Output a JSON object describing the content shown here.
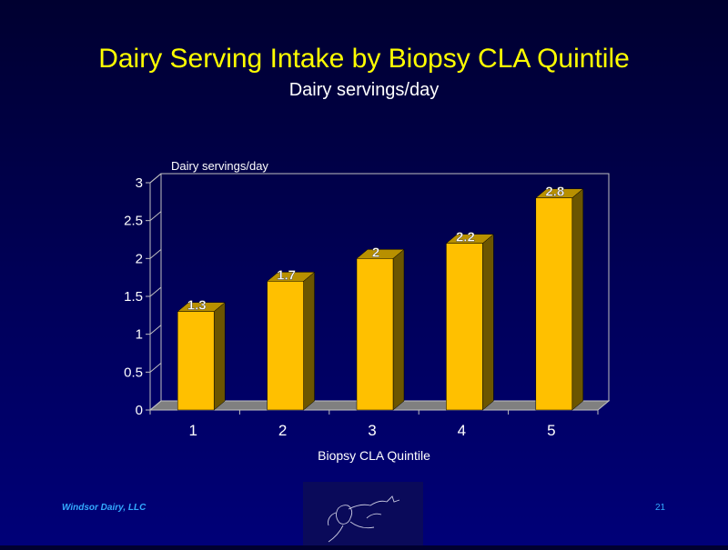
{
  "slide": {
    "title": "Dairy Serving Intake by Biopsy CLA Quintile",
    "subtitle": "Dairy servings/day",
    "footer_company": "Windsor Dairy, LLC",
    "page_number": "21"
  },
  "colors": {
    "bar_front": "#ffc000",
    "bar_side": "#6b5500",
    "bar_top": "#b89000",
    "axis": "#c0c0c0",
    "floor": "#808080",
    "title": "#ffff00",
    "text": "#ffffff",
    "footer": "#33aaff"
  },
  "chart_data": {
    "type": "bar",
    "title": "",
    "ylabel": "Dairy servings/day",
    "xlabel": "Biopsy CLA Quintile",
    "categories": [
      "1",
      "2",
      "3",
      "4",
      "5"
    ],
    "values": [
      1.3,
      1.7,
      2,
      2.2,
      2.8
    ],
    "data_labels": [
      "1.3",
      "1.7",
      "2",
      "2.2",
      "2.8"
    ],
    "ylim": [
      0,
      3
    ],
    "yticks": [
      0,
      0.5,
      1,
      1.5,
      2,
      2.5,
      3
    ],
    "ytick_labels": [
      "0",
      "0.5",
      "1",
      "1.5",
      "2",
      "2.5",
      "3"
    ],
    "grid": false,
    "three_d": true
  }
}
